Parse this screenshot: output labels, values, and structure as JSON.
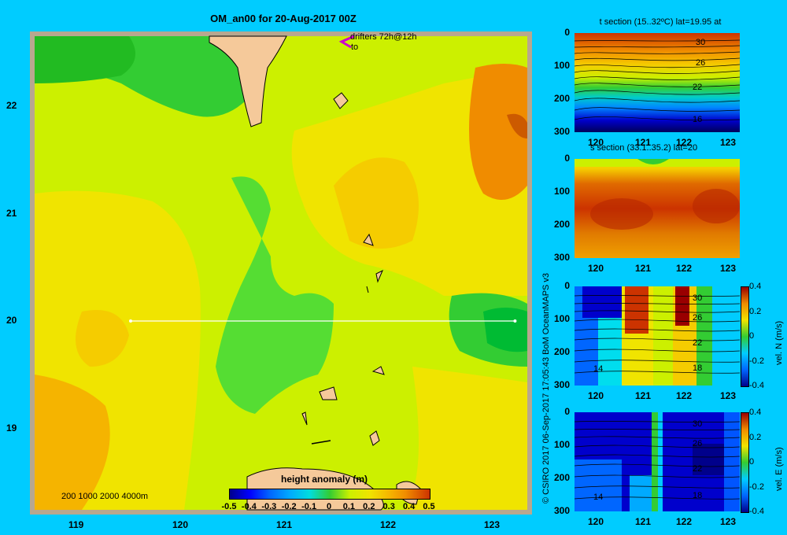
{
  "map": {
    "title": "OM_an00 for 20-Aug-2017 00Z",
    "drifter_label": "drifters 72h@12h",
    "drifter_to": "to",
    "lat_ticks": [
      "22",
      "21",
      "20",
      "19"
    ],
    "lon_ticks": [
      "119",
      "120",
      "121",
      "122",
      "123"
    ],
    "depth_legend": "200  1000  2000  4000m",
    "colorbar_title": "height anomaly  (m)",
    "colorbar_ticks": [
      "-0.5",
      "-0.4",
      "-0.3",
      "-0.2",
      "-0.1",
      "0",
      "0.1",
      "0.2",
      "0.3",
      "0.4",
      "0.5"
    ],
    "section_line": {
      "lat": 20,
      "lon_start": 119.5,
      "lon_end": 123.2
    }
  },
  "credit": "© CSIRO 2017    06-Sep-2017 17:05:43 BoM OceanMAPS v3",
  "panels": [
    {
      "title": "t section (15..32ºC) lat=19.95 at",
      "y_ticks": [
        "0",
        "100",
        "200",
        "300"
      ],
      "x_ticks": [
        "120",
        "121",
        "122",
        "123"
      ],
      "contour_labels": [
        "30",
        "26",
        "22",
        "16"
      ]
    },
    {
      "title": "s section (33.1..35.2) lat=20",
      "y_ticks": [
        "0",
        "100",
        "200",
        "300"
      ],
      "x_ticks": [
        "120",
        "121",
        "122",
        "123"
      ],
      "contour_labels": []
    },
    {
      "title": "",
      "y_ticks": [
        "0",
        "100",
        "200",
        "300"
      ],
      "x_ticks": [
        "120",
        "121",
        "122",
        "123"
      ],
      "contour_labels": [
        "30",
        "26",
        "22",
        "18",
        "14"
      ],
      "cbar_label": "vel. N (m/s)",
      "cbar_ticks": [
        "0.4",
        "0.2",
        "0",
        "-0.2",
        "-0.4"
      ]
    },
    {
      "title": "",
      "y_ticks": [
        "0",
        "100",
        "200",
        "300"
      ],
      "x_ticks": [
        "120",
        "121",
        "122",
        "123"
      ],
      "contour_labels": [
        "30",
        "26",
        "22",
        "18",
        "14"
      ],
      "cbar_label": "vel. E (m/s)",
      "cbar_ticks": [
        "0.4",
        "0.2",
        "0",
        "-0.2",
        "-0.4"
      ]
    }
  ]
}
